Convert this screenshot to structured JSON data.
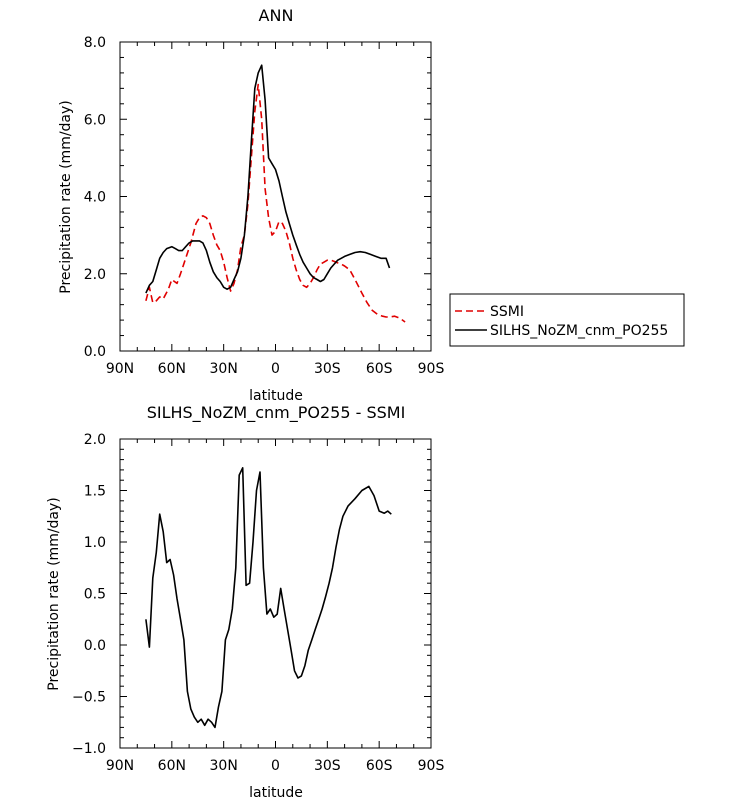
{
  "chart_data": [
    {
      "type": "line",
      "title": "ANN",
      "xlabel": "latitude",
      "ylabel": "Precipitation rate (mm/day)",
      "xlim": [
        90,
        -90
      ],
      "ylim": [
        0,
        8
      ],
      "xticks": [
        90,
        60,
        30,
        0,
        -30,
        -60,
        -90
      ],
      "xtick_labels": [
        "90N",
        "60N",
        "30N",
        "0",
        "30S",
        "60S",
        "90S"
      ],
      "yticks": [
        0,
        2,
        4,
        6,
        8
      ],
      "ytick_labels": [
        "0.0",
        "2.0",
        "4.0",
        "6.0",
        "8.0"
      ],
      "legend_position": "right",
      "series": [
        {
          "name": "SSMI",
          "color": "#e00000",
          "dash": "dashed",
          "x": [
            75,
            73,
            71,
            69,
            67,
            65,
            62,
            60,
            57,
            55,
            52,
            49,
            46,
            44,
            42,
            40,
            38,
            36,
            34,
            32,
            30,
            28,
            26,
            24,
            22,
            20,
            18,
            16,
            14,
            12,
            10,
            8,
            6,
            4,
            2,
            0,
            -2,
            -4,
            -6,
            -8,
            -10,
            -12,
            -14,
            -16,
            -18,
            -20,
            -22,
            -24,
            -26,
            -28,
            -30,
            -32,
            -34,
            -36,
            -38,
            -40,
            -43,
            -46,
            -50,
            -53,
            -56,
            -59,
            -62,
            -64,
            -66,
            -69,
            -72,
            -75
          ],
          "y": [
            1.3,
            1.65,
            1.25,
            1.3,
            1.4,
            1.35,
            1.6,
            1.85,
            1.75,
            2.0,
            2.4,
            2.8,
            3.3,
            3.45,
            3.5,
            3.45,
            3.3,
            3.0,
            2.75,
            2.6,
            2.3,
            1.9,
            1.55,
            1.75,
            2.1,
            2.7,
            3.0,
            3.8,
            5.0,
            6.2,
            6.9,
            6.0,
            4.2,
            3.45,
            3.0,
            3.1,
            3.35,
            3.3,
            3.1,
            2.8,
            2.4,
            2.1,
            1.85,
            1.7,
            1.65,
            1.75,
            1.9,
            2.1,
            2.25,
            2.3,
            2.35,
            2.35,
            2.32,
            2.28,
            2.25,
            2.2,
            2.1,
            1.85,
            1.5,
            1.25,
            1.05,
            0.95,
            0.9,
            0.88,
            0.88,
            0.9,
            0.85,
            0.75
          ]
        },
        {
          "name": "SILHS_NoZM_cnm_PO255",
          "color": "#000000",
          "dash": "solid",
          "x": [
            75,
            73,
            71,
            69,
            67,
            65,
            63,
            60,
            58,
            56,
            54,
            52,
            50,
            48,
            46,
            44,
            42,
            40,
            38,
            36,
            34,
            32,
            30,
            28,
            26,
            24,
            22,
            20,
            18,
            16,
            14,
            12,
            10,
            8,
            6,
            4,
            2,
            0,
            -2,
            -4,
            -6,
            -8,
            -10,
            -12,
            -14,
            -16,
            -18,
            -20,
            -22,
            -24,
            -26,
            -28,
            -30,
            -32,
            -34,
            -36,
            -38,
            -40,
            -43,
            -46,
            -49,
            -52,
            -55,
            -58,
            -61,
            -64,
            -66
          ],
          "y": [
            1.5,
            1.7,
            1.8,
            2.1,
            2.4,
            2.55,
            2.65,
            2.7,
            2.65,
            2.6,
            2.6,
            2.7,
            2.8,
            2.85,
            2.85,
            2.85,
            2.8,
            2.6,
            2.3,
            2.05,
            1.9,
            1.8,
            1.65,
            1.6,
            1.65,
            1.85,
            2.05,
            2.4,
            3.0,
            4.0,
            5.4,
            6.8,
            7.2,
            7.4,
            6.5,
            5.0,
            4.85,
            4.7,
            4.4,
            4.0,
            3.6,
            3.3,
            3.0,
            2.75,
            2.5,
            2.3,
            2.15,
            2.0,
            1.9,
            1.85,
            1.8,
            1.85,
            2.0,
            2.15,
            2.25,
            2.35,
            2.4,
            2.45,
            2.5,
            2.55,
            2.57,
            2.55,
            2.5,
            2.45,
            2.4,
            2.4,
            2.15
          ]
        }
      ]
    },
    {
      "type": "line",
      "title": "SILHS_NoZM_cnm_PO255 - SSMI",
      "xlabel": "latitude",
      "ylabel": "Precipitation rate (mm/day)",
      "xlim": [
        90,
        -90
      ],
      "ylim": [
        -1,
        2
      ],
      "xticks": [
        90,
        60,
        30,
        0,
        -30,
        -60,
        -90
      ],
      "xtick_labels": [
        "90N",
        "60N",
        "30N",
        "0",
        "30S",
        "60S",
        "90S"
      ],
      "yticks": [
        -1,
        -0.5,
        0,
        0.5,
        1,
        1.5,
        2
      ],
      "ytick_labels": [
        "−1.0",
        "−0.5",
        "0.0",
        "0.5",
        "1.0",
        "1.5",
        "2.0"
      ],
      "series": [
        {
          "color": "#000000",
          "dash": "solid",
          "x": [
            75,
            73,
            71,
            69,
            67,
            65,
            63,
            61,
            59,
            57,
            55,
            53,
            51,
            49,
            47,
            45,
            43,
            41,
            39,
            37,
            35,
            33,
            31,
            29,
            27,
            25,
            23,
            21,
            19,
            17,
            15,
            13,
            11,
            9,
            7,
            5,
            3,
            1,
            -1,
            -3,
            -5,
            -7,
            -9,
            -11,
            -13,
            -15,
            -17,
            -19,
            -21,
            -23,
            -25,
            -27,
            -29,
            -31,
            -33,
            -35,
            -37,
            -39,
            -42,
            -46,
            -50,
            -54,
            -57,
            -60,
            -63,
            -65,
            -67
          ],
          "y": [
            0.25,
            -0.02,
            0.65,
            0.9,
            1.27,
            1.1,
            0.8,
            0.83,
            0.68,
            0.45,
            0.25,
            0.05,
            -0.45,
            -0.62,
            -0.7,
            -0.75,
            -0.72,
            -0.78,
            -0.72,
            -0.75,
            -0.8,
            -0.6,
            -0.45,
            0.05,
            0.15,
            0.35,
            0.75,
            1.65,
            1.72,
            0.58,
            0.6,
            1.0,
            1.5,
            1.68,
            0.75,
            0.3,
            0.35,
            0.27,
            0.3,
            0.55,
            0.35,
            0.15,
            -0.05,
            -0.25,
            -0.32,
            -0.3,
            -0.2,
            -0.05,
            0.05,
            0.15,
            0.25,
            0.35,
            0.47,
            0.6,
            0.75,
            0.95,
            1.12,
            1.25,
            1.35,
            1.42,
            1.5,
            1.54,
            1.45,
            1.3,
            1.28,
            1.3,
            1.27
          ]
        }
      ]
    }
  ]
}
